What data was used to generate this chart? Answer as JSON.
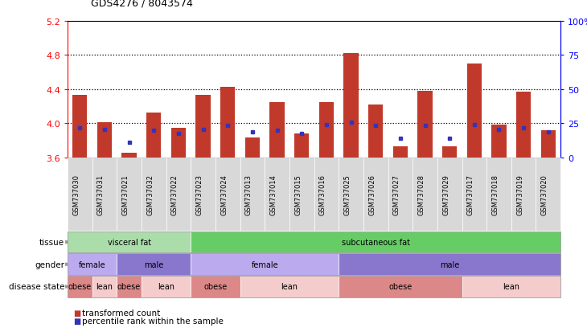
{
  "title": "GDS4276 / 8043574",
  "samples": [
    "GSM737030",
    "GSM737031",
    "GSM737021",
    "GSM737032",
    "GSM737022",
    "GSM737023",
    "GSM737024",
    "GSM737013",
    "GSM737014",
    "GSM737015",
    "GSM737016",
    "GSM737025",
    "GSM737026",
    "GSM737027",
    "GSM737028",
    "GSM737029",
    "GSM737017",
    "GSM737018",
    "GSM737019",
    "GSM737020"
  ],
  "bar_values": [
    4.33,
    4.01,
    3.65,
    4.12,
    3.95,
    4.33,
    4.43,
    3.83,
    4.25,
    3.88,
    4.25,
    4.82,
    4.22,
    3.73,
    4.38,
    3.73,
    4.7,
    3.98,
    4.37,
    3.92
  ],
  "blue_values": [
    3.95,
    3.93,
    3.78,
    3.92,
    3.88,
    3.93,
    3.97,
    3.9,
    3.92,
    3.88,
    3.98,
    4.01,
    3.97,
    3.82,
    3.97,
    3.82,
    3.98,
    3.93,
    3.95,
    3.9
  ],
  "ymin": 3.6,
  "ymax": 5.2,
  "yticks_left": [
    3.6,
    4.0,
    4.4,
    4.8,
    5.2
  ],
  "yticks_right_vals": [
    0,
    25,
    50,
    75,
    100
  ],
  "yticks_right_labels": [
    "0",
    "25",
    "50",
    "75",
    "100%"
  ],
  "bar_color": "#c0392b",
  "blue_color": "#3333bb",
  "tissue_groups": [
    {
      "label": "visceral fat",
      "start": 0,
      "end": 5,
      "color": "#aaddaa"
    },
    {
      "label": "subcutaneous fat",
      "start": 5,
      "end": 20,
      "color": "#66cc66"
    }
  ],
  "gender_groups": [
    {
      "label": "female",
      "start": 0,
      "end": 2,
      "color": "#bbaaee"
    },
    {
      "label": "male",
      "start": 2,
      "end": 5,
      "color": "#8877cc"
    },
    {
      "label": "female",
      "start": 5,
      "end": 11,
      "color": "#bbaaee"
    },
    {
      "label": "male",
      "start": 11,
      "end": 20,
      "color": "#8877cc"
    }
  ],
  "disease_groups": [
    {
      "label": "obese",
      "start": 0,
      "end": 1,
      "color": "#dd8888"
    },
    {
      "label": "lean",
      "start": 1,
      "end": 2,
      "color": "#f5cccc"
    },
    {
      "label": "obese",
      "start": 2,
      "end": 3,
      "color": "#dd8888"
    },
    {
      "label": "lean",
      "start": 3,
      "end": 5,
      "color": "#f5cccc"
    },
    {
      "label": "obese",
      "start": 5,
      "end": 7,
      "color": "#dd8888"
    },
    {
      "label": "lean",
      "start": 7,
      "end": 11,
      "color": "#f5cccc"
    },
    {
      "label": "obese",
      "start": 11,
      "end": 16,
      "color": "#dd8888"
    },
    {
      "label": "lean",
      "start": 16,
      "end": 20,
      "color": "#f5cccc"
    }
  ],
  "legend_items": [
    {
      "label": "transformed count",
      "color": "#c0392b"
    },
    {
      "label": "percentile rank within the sample",
      "color": "#3333bb"
    }
  ]
}
